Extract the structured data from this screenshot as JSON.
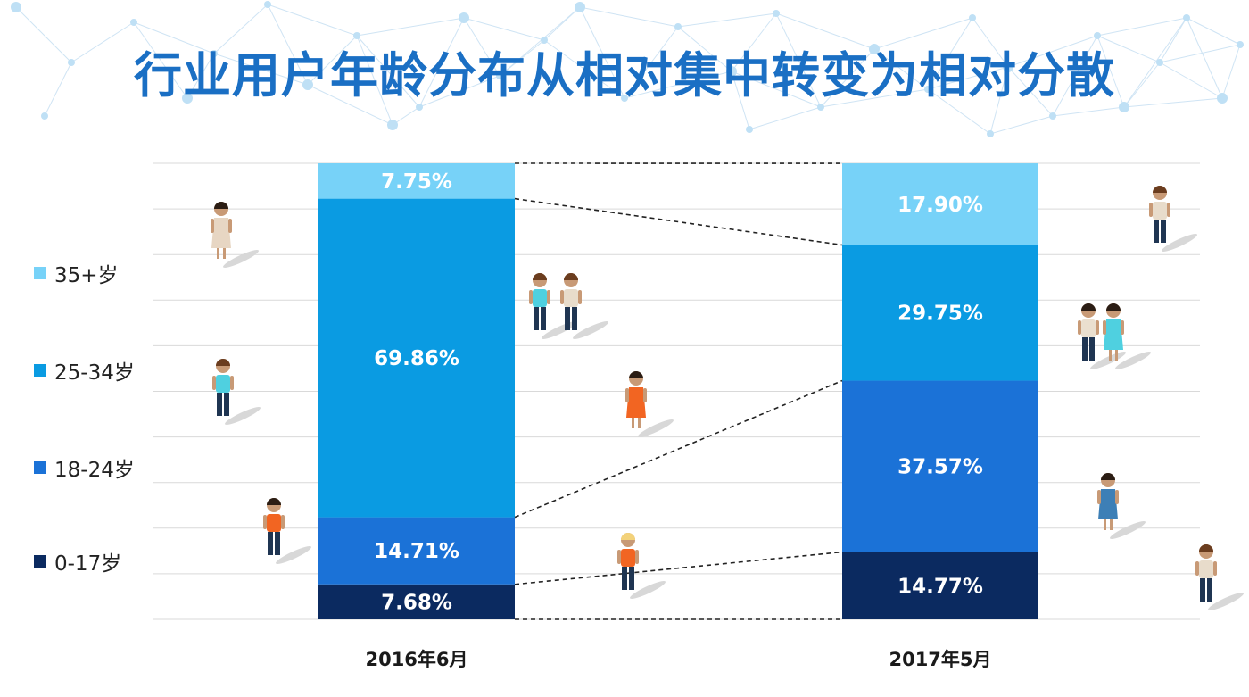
{
  "title": "行业用户年龄分布从相对集中转变为相对分散",
  "colors": {
    "title": "#1a6fc4",
    "age_35_plus": "#77d2f8",
    "age_25_34": "#0a9be2",
    "age_18_24": "#1b72d7",
    "age_0_17": "#0b2a60",
    "grid": "#d9d9d9",
    "connector": "#222222"
  },
  "legend": [
    {
      "label": "35+岁",
      "color": "#77d2f8"
    },
    {
      "label": "25-34岁",
      "color": "#0a9be2"
    },
    {
      "label": "18-24岁",
      "color": "#1b72d7"
    },
    {
      "label": "0-17岁",
      "color": "#0b2a60"
    }
  ],
  "chart_data": {
    "type": "bar",
    "stacked": "percent",
    "categories": [
      "2016年6月",
      "2017年5月"
    ],
    "series": [
      {
        "name": "0-17岁",
        "values": [
          7.68,
          14.77
        ],
        "labels": [
          "7.68%",
          "14.77%"
        ],
        "color": "#0b2a60"
      },
      {
        "name": "18-24岁",
        "values": [
          14.71,
          37.57
        ],
        "labels": [
          "14.71%",
          "37.57%"
        ],
        "color": "#1b72d7"
      },
      {
        "name": "25-34岁",
        "values": [
          69.86,
          29.75
        ],
        "labels": [
          "69.86%",
          "29.75%"
        ],
        "color": "#0a9be2"
      },
      {
        "name": "35+岁",
        "values": [
          7.75,
          17.9
        ],
        "labels": [
          "7.75%",
          "17.90%"
        ],
        "color": "#77d2f8"
      }
    ],
    "ylim": [
      0,
      100
    ],
    "grid": true,
    "legend_position": "left",
    "connectors": "dashed lines between stacked segment boundaries"
  },
  "people": [
    {
      "group": "2016-35+",
      "outfit": "beige-dress",
      "hair": "dark"
    },
    {
      "group": "2016-25-34",
      "outfit": "teal-shirt",
      "hair": "brown"
    },
    {
      "group": "2016-18-24",
      "outfit": "orange-shirt",
      "hair": "dark"
    },
    {
      "group": "mid-1",
      "outfit": "teal-shirt",
      "hair": "brown"
    },
    {
      "group": "mid-2",
      "outfit": "beige-shirt",
      "hair": "brown"
    },
    {
      "group": "mid-3",
      "outfit": "orange-dress",
      "hair": "dark"
    },
    {
      "group": "mid-4",
      "outfit": "orange-top",
      "hair": "blonde"
    },
    {
      "group": "2017-35+",
      "outfit": "beige-shirt",
      "hair": "brown"
    },
    {
      "group": "2017-25-34-a",
      "outfit": "beige-top",
      "hair": "dark"
    },
    {
      "group": "2017-25-34-b",
      "outfit": "teal-dress",
      "hair": "dark"
    },
    {
      "group": "2017-18-24",
      "outfit": "blue-dress",
      "hair": "dark"
    },
    {
      "group": "2017-0-17",
      "outfit": "beige-shirt",
      "hair": "brown"
    }
  ]
}
